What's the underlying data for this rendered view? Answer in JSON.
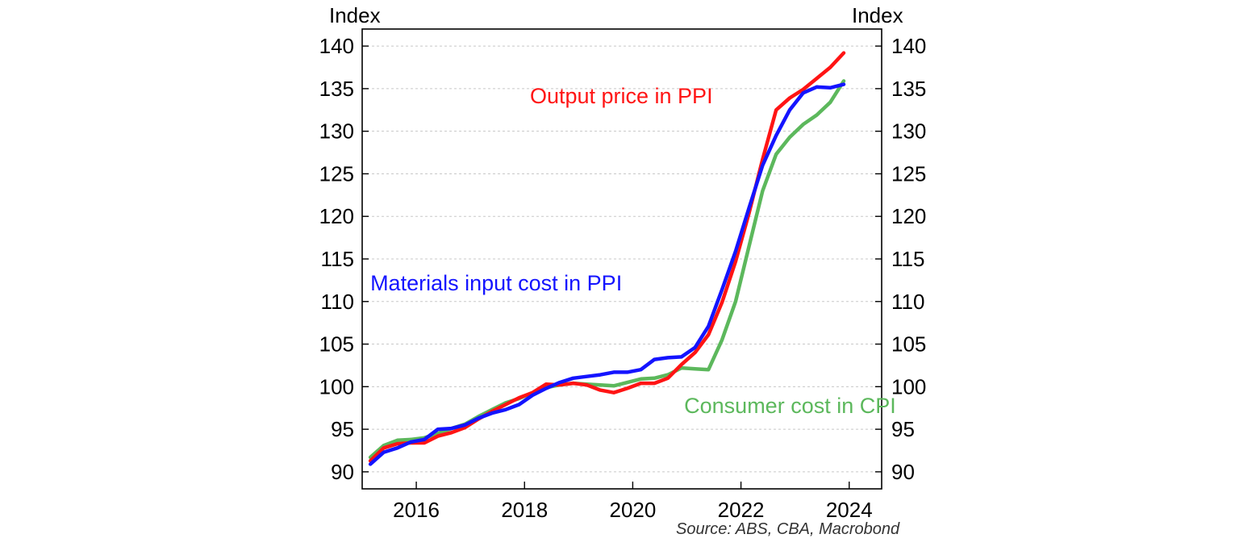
{
  "chart_data": {
    "type": "line",
    "y_unit_left": "Index",
    "y_unit_right": "Index",
    "source": "Source: ABS, CBA, Macrobond",
    "xlim": [
      2015.0,
      2024.6
    ],
    "ylim": [
      88,
      142
    ],
    "x_ticks": [
      2016,
      2018,
      2020,
      2022,
      2024
    ],
    "y_ticks": [
      90,
      95,
      100,
      105,
      110,
      115,
      120,
      125,
      130,
      135,
      140
    ],
    "grid": true,
    "series": [
      {
        "name": "Materials input cost in PPI",
        "color": "#1414ff",
        "label_at": [
          2015.15,
          111.3
        ],
        "x": [
          2015.15,
          2015.4,
          2015.65,
          2015.9,
          2016.15,
          2016.4,
          2016.65,
          2016.9,
          2017.15,
          2017.4,
          2017.65,
          2017.9,
          2018.15,
          2018.4,
          2018.65,
          2018.9,
          2019.15,
          2019.4,
          2019.65,
          2019.9,
          2020.15,
          2020.4,
          2020.65,
          2020.9,
          2021.15,
          2021.4,
          2021.65,
          2021.9,
          2022.15,
          2022.4,
          2022.65,
          2022.9,
          2023.15,
          2023.4,
          2023.65,
          2023.9
        ],
        "y": [
          90.9,
          92.3,
          92.8,
          93.5,
          93.8,
          95.0,
          95.1,
          95.5,
          96.3,
          96.9,
          97.3,
          97.9,
          99.0,
          99.8,
          100.5,
          101.0,
          101.2,
          101.4,
          101.7,
          101.7,
          102.0,
          103.2,
          103.4,
          103.5,
          104.6,
          107.1,
          111.4,
          115.9,
          121.0,
          126.0,
          129.5,
          132.5,
          134.5,
          135.2,
          135.1,
          135.5
        ]
      },
      {
        "name": "Output price in PPI",
        "color": "#ff1414",
        "label_at": [
          2018.1,
          133.3
        ],
        "x": [
          2015.15,
          2015.4,
          2015.65,
          2015.9,
          2016.15,
          2016.4,
          2016.65,
          2016.9,
          2017.15,
          2017.4,
          2017.65,
          2017.9,
          2018.15,
          2018.4,
          2018.65,
          2018.9,
          2019.15,
          2019.4,
          2019.65,
          2019.9,
          2020.15,
          2020.4,
          2020.65,
          2020.9,
          2021.15,
          2021.4,
          2021.65,
          2021.9,
          2022.15,
          2022.4,
          2022.65,
          2022.9,
          2023.15,
          2023.4,
          2023.65,
          2023.9
        ],
        "y": [
          91.3,
          92.8,
          93.3,
          93.4,
          93.4,
          94.2,
          94.6,
          95.2,
          96.2,
          97.1,
          97.9,
          98.7,
          99.3,
          100.3,
          100.2,
          100.4,
          100.2,
          99.6,
          99.3,
          99.8,
          100.4,
          100.4,
          101.0,
          102.6,
          104.0,
          106.1,
          109.9,
          114.7,
          120.4,
          126.7,
          132.5,
          133.9,
          134.9,
          136.2,
          137.5,
          139.2
        ]
      },
      {
        "name": "Consumer cost in CPI",
        "color": "#5cb85c",
        "label_at": [
          2020.95,
          96.9
        ],
        "x": [
          2015.15,
          2015.4,
          2015.65,
          2015.9,
          2016.15,
          2016.4,
          2016.65,
          2016.9,
          2017.15,
          2017.4,
          2017.65,
          2017.9,
          2018.15,
          2018.4,
          2018.65,
          2018.9,
          2019.15,
          2019.4,
          2019.65,
          2019.9,
          2020.15,
          2020.4,
          2020.65,
          2020.9,
          2021.15,
          2021.4,
          2021.65,
          2021.9,
          2022.15,
          2022.4,
          2022.65,
          2022.9,
          2023.15,
          2023.4,
          2023.65,
          2023.9
        ],
        "y": [
          91.7,
          93.1,
          93.7,
          93.8,
          94.0,
          94.5,
          95.1,
          95.6,
          96.5,
          97.3,
          98.1,
          98.6,
          99.3,
          99.9,
          100.2,
          100.4,
          100.3,
          100.2,
          100.1,
          100.5,
          100.9,
          101.0,
          101.4,
          102.2,
          102.1,
          102.0,
          105.5,
          110.0,
          116.5,
          123.0,
          127.3,
          129.3,
          130.8,
          131.9,
          133.4,
          135.9
        ]
      }
    ]
  }
}
